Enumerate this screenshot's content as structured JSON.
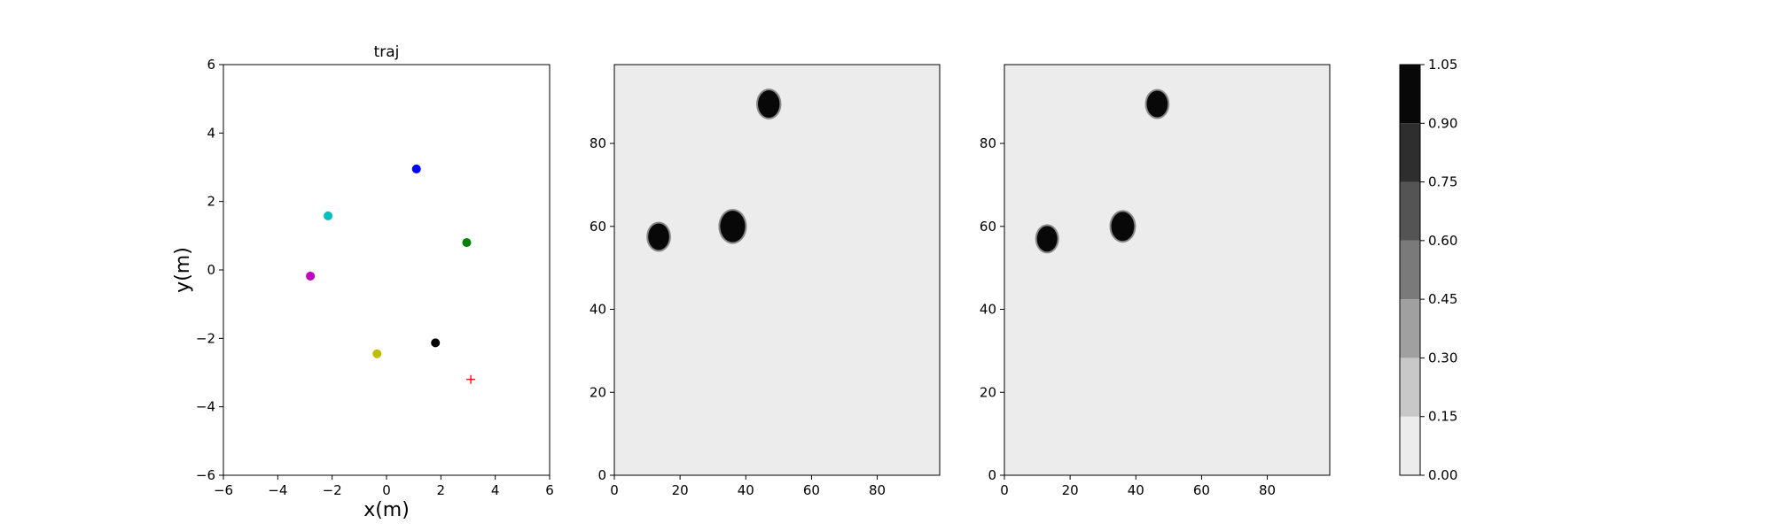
{
  "chart_data": [
    {
      "type": "scatter",
      "title": "traj",
      "xlabel": "x(m)",
      "ylabel": "y(m)",
      "xlim": [
        -6,
        6
      ],
      "ylim": [
        -6,
        6
      ],
      "xticks": [
        -6,
        -4,
        -2,
        0,
        2,
        4,
        6
      ],
      "yticks": [
        -6,
        -4,
        -2,
        0,
        2,
        4,
        6
      ],
      "grid": false,
      "points": [
        {
          "x": 1.1,
          "y": 2.95,
          "color": "#0000ff",
          "marker": "circle"
        },
        {
          "x": -2.15,
          "y": 1.58,
          "color": "#00bfbf",
          "marker": "circle"
        },
        {
          "x": 2.95,
          "y": 0.8,
          "color": "#008000",
          "marker": "circle"
        },
        {
          "x": -2.8,
          "y": -0.18,
          "color": "#bf00bf",
          "marker": "circle"
        },
        {
          "x": 1.8,
          "y": -2.13,
          "color": "#000000",
          "marker": "circle"
        },
        {
          "x": -0.35,
          "y": -2.45,
          "color": "#bfbf00",
          "marker": "circle"
        },
        {
          "x": 3.1,
          "y": -3.2,
          "color": "#ff0000",
          "marker": "plus"
        }
      ]
    },
    {
      "type": "heatmap",
      "xlim": [
        0,
        99
      ],
      "ylim": [
        0,
        99
      ],
      "xticks": [
        0,
        20,
        40,
        60,
        80
      ],
      "yticks": [
        0,
        20,
        40,
        60,
        80
      ],
      "background_value": 0.05,
      "blobs": [
        {
          "cx": 13.5,
          "cy": 57.5,
          "r": 3.2,
          "value": 1.0
        },
        {
          "cx": 36,
          "cy": 60,
          "r": 3.8,
          "value": 1.0
        },
        {
          "cx": 47,
          "cy": 89.5,
          "r": 3.3,
          "value": 1.0
        }
      ]
    },
    {
      "type": "heatmap",
      "xlim": [
        0,
        99
      ],
      "ylim": [
        0,
        99
      ],
      "xticks": [
        0,
        20,
        40,
        60,
        80
      ],
      "yticks": [
        0,
        20,
        40,
        60,
        80
      ],
      "background_value": 0.05,
      "blobs": [
        {
          "cx": 13,
          "cy": 57,
          "r": 3.1,
          "value": 1.0
        },
        {
          "cx": 36,
          "cy": 60,
          "r": 3.5,
          "value": 1.0
        },
        {
          "cx": 46.5,
          "cy": 89.5,
          "r": 3.2,
          "value": 1.0
        }
      ]
    }
  ],
  "colorbar": {
    "levels": [
      0.0,
      0.15,
      0.3,
      0.45,
      0.6,
      0.75,
      0.9,
      1.05
    ],
    "tick_labels": [
      "0.00",
      "0.15",
      "0.30",
      "0.45",
      "0.60",
      "0.75",
      "0.90",
      "1.05"
    ],
    "colors": [
      "#ececec",
      "#c8c8c8",
      "#a0a0a0",
      "#7a7a7a",
      "#545454",
      "#2e2e2e",
      "#080808"
    ]
  }
}
